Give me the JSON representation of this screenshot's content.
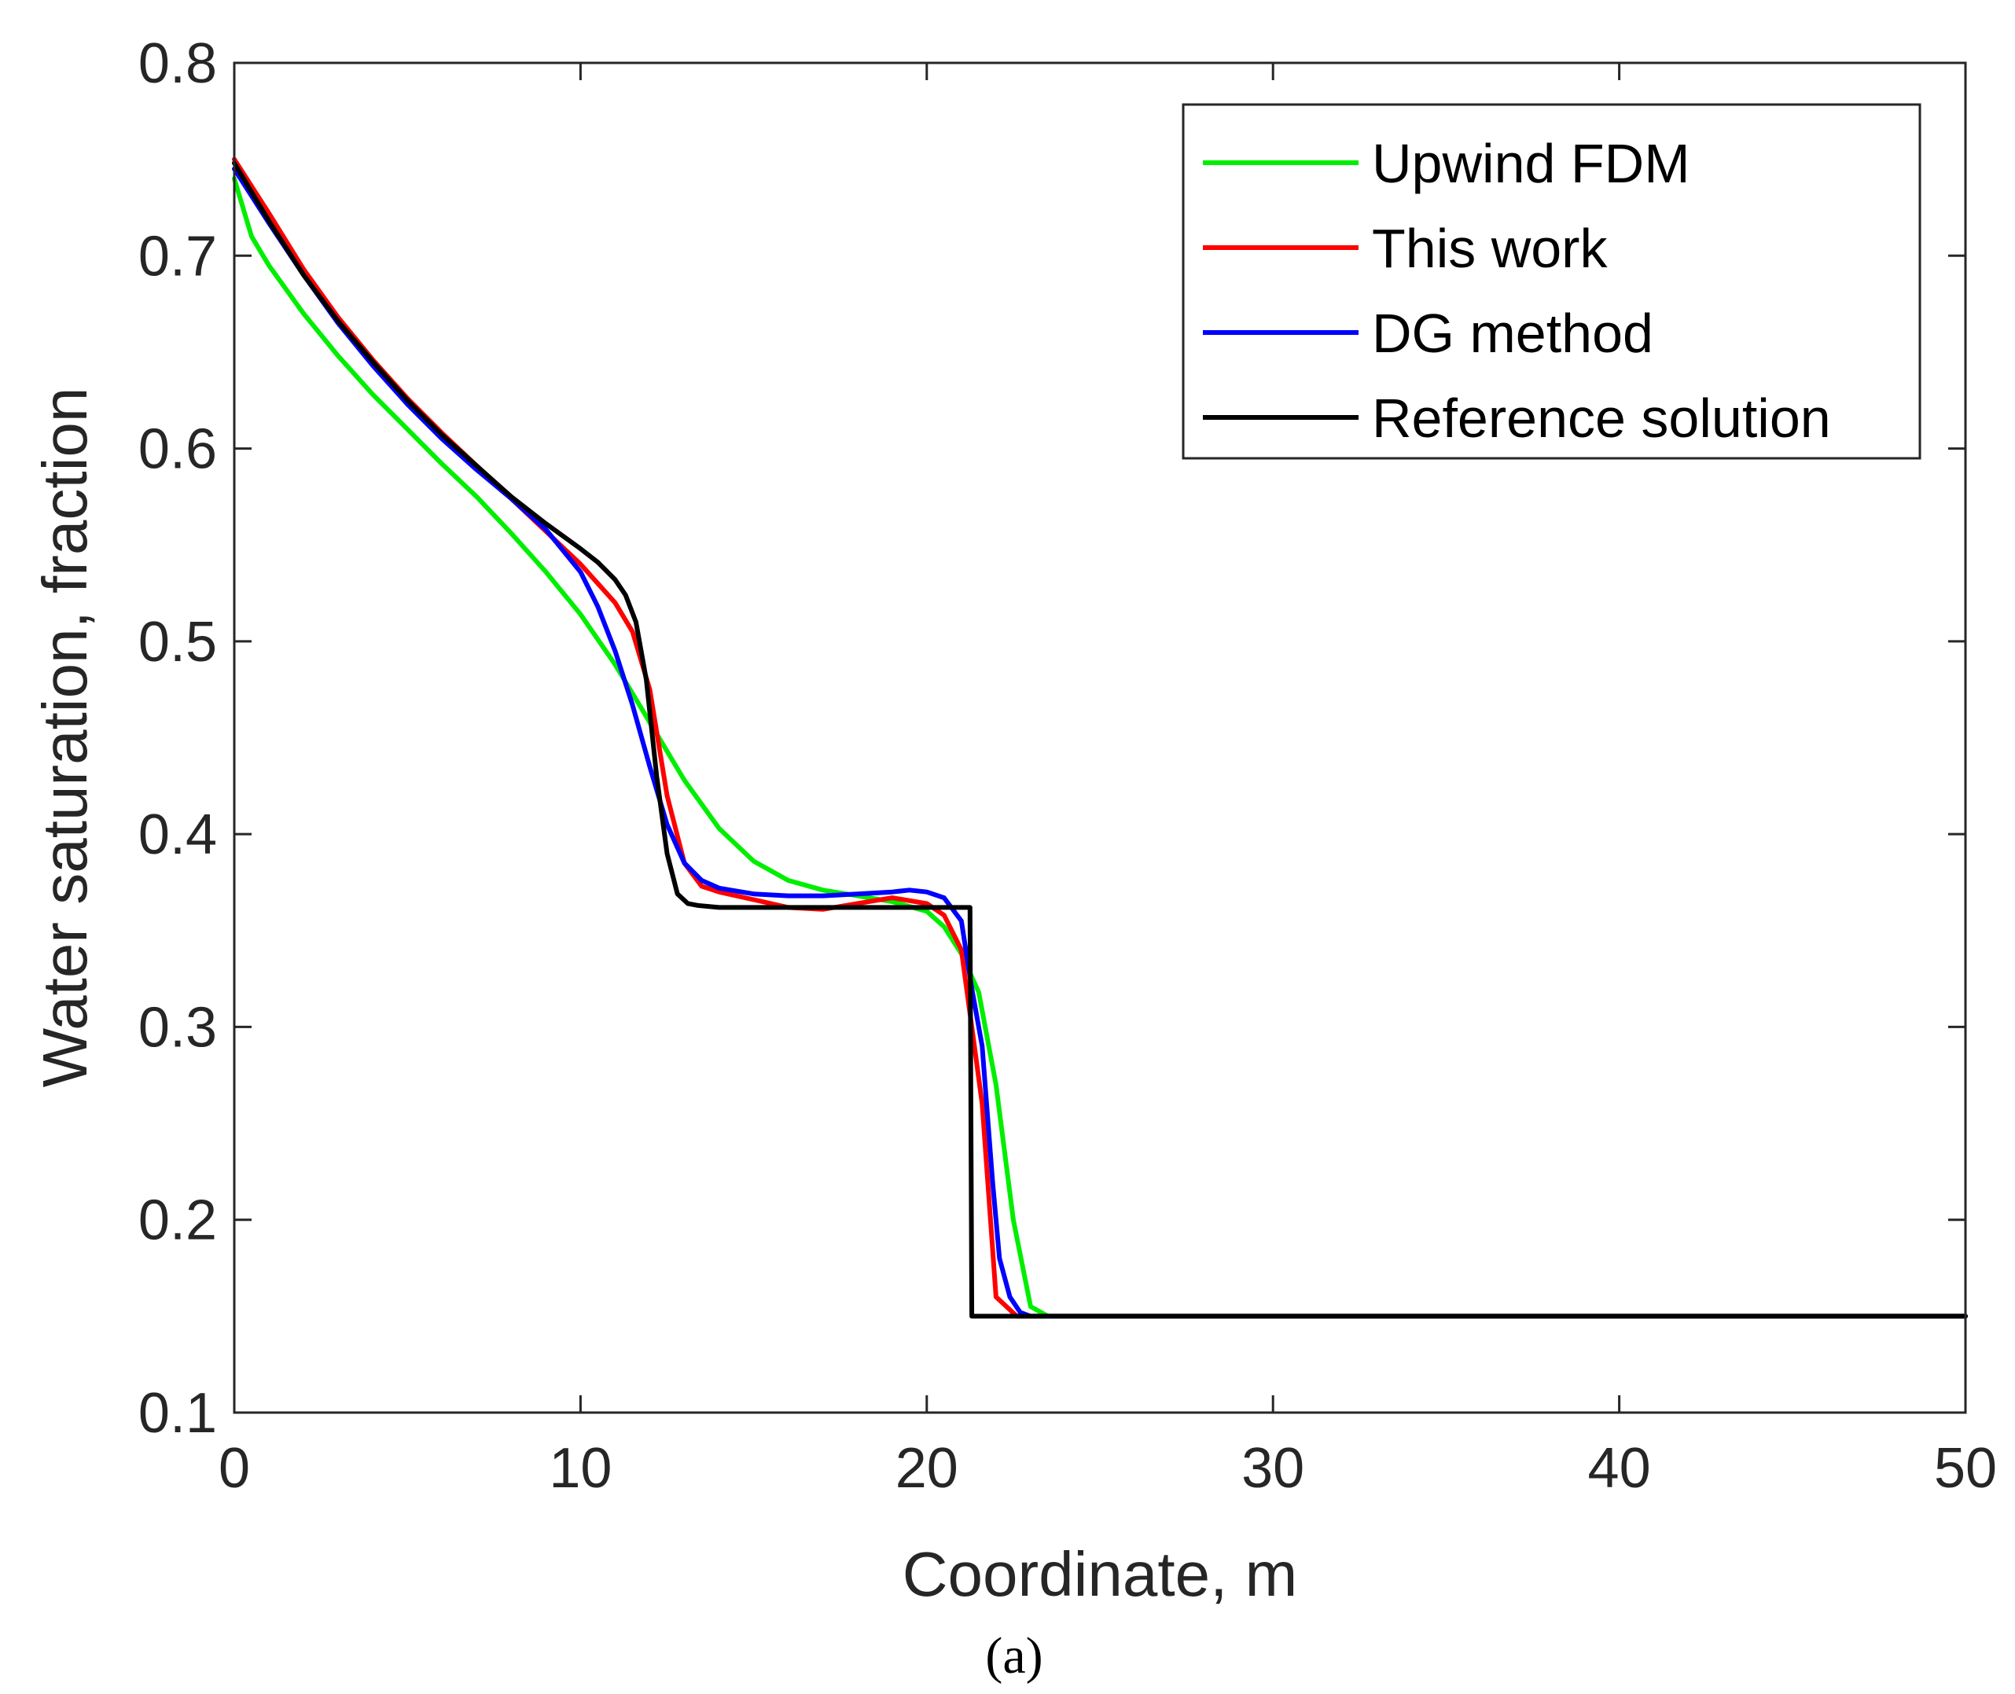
{
  "chart_data": {
    "type": "line",
    "title": "",
    "xlabel": "Coordinate, m",
    "ylabel": "Water saturation, fraction",
    "xlim": [
      0,
      50
    ],
    "ylim": [
      0.1,
      0.8
    ],
    "xticks": [
      0,
      10,
      20,
      30,
      40,
      50
    ],
    "yticks": [
      0.1,
      0.2,
      0.3,
      0.4,
      0.5,
      0.6,
      0.7,
      0.8
    ],
    "xtick_labels": [
      "0",
      "10",
      "20",
      "30",
      "40",
      "50"
    ],
    "ytick_labels": [
      "0.1",
      "0.2",
      "0.3",
      "0.4",
      "0.5",
      "0.6",
      "0.7",
      "0.8"
    ],
    "grid": false,
    "legend_position": "top-right",
    "caption": "(a)",
    "series": [
      {
        "name": "Upwind FDM",
        "color": "#00ee00",
        "x": [
          0,
          0.5,
          1,
          2,
          3,
          4,
          5,
          6,
          7,
          8,
          9,
          10,
          11,
          12,
          13,
          14,
          15,
          16,
          17,
          18,
          19,
          20,
          20.5,
          21,
          21.5,
          22,
          22.5,
          23,
          23.5,
          25,
          30,
          40,
          50
        ],
        "y": [
          0.74,
          0.71,
          0.695,
          0.67,
          0.648,
          0.628,
          0.61,
          0.592,
          0.575,
          0.556,
          0.536,
          0.514,
          0.488,
          0.458,
          0.428,
          0.403,
          0.386,
          0.376,
          0.371,
          0.368,
          0.365,
          0.36,
          0.352,
          0.338,
          0.318,
          0.27,
          0.2,
          0.155,
          0.15,
          0.15,
          0.15,
          0.15,
          0.15
        ]
      },
      {
        "name": "This work",
        "color": "#ff0000",
        "x": [
          0,
          1,
          2,
          3,
          4,
          5,
          6,
          7,
          8,
          9,
          10,
          11,
          11.5,
          12,
          12.5,
          13,
          13.5,
          14,
          15,
          16,
          17,
          18,
          19,
          20,
          20.5,
          21,
          21.3,
          21.6,
          22,
          22.3,
          22.6,
          23,
          25,
          30,
          40,
          50
        ],
        "y": [
          0.75,
          0.722,
          0.693,
          0.668,
          0.646,
          0.626,
          0.608,
          0.591,
          0.574,
          0.557,
          0.54,
          0.52,
          0.505,
          0.475,
          0.42,
          0.385,
          0.373,
          0.37,
          0.366,
          0.362,
          0.361,
          0.364,
          0.367,
          0.364,
          0.358,
          0.34,
          0.3,
          0.26,
          0.16,
          0.155,
          0.15,
          0.15,
          0.15,
          0.15,
          0.15,
          0.15
        ]
      },
      {
        "name": "DG method",
        "color": "#0000ff",
        "x": [
          0,
          1,
          2,
          3,
          4,
          5,
          6,
          7,
          8,
          9,
          10,
          10.5,
          11,
          11.5,
          12,
          12.5,
          13,
          13.5,
          14,
          15,
          16,
          17,
          18,
          19,
          19.5,
          20,
          20.5,
          21,
          21.3,
          21.6,
          21.9,
          22.1,
          22.4,
          22.7,
          23,
          25,
          30,
          40,
          50
        ],
        "y": [
          0.745,
          0.717,
          0.69,
          0.665,
          0.643,
          0.623,
          0.605,
          0.589,
          0.574,
          0.558,
          0.536,
          0.518,
          0.495,
          0.467,
          0.435,
          0.405,
          0.385,
          0.376,
          0.372,
          0.369,
          0.368,
          0.368,
          0.369,
          0.37,
          0.371,
          0.37,
          0.367,
          0.355,
          0.32,
          0.29,
          0.22,
          0.18,
          0.16,
          0.152,
          0.15,
          0.15,
          0.15,
          0.15,
          0.15
        ]
      },
      {
        "name": "Reference solution",
        "color": "#000000",
        "x": [
          0,
          1,
          2,
          3,
          4,
          5,
          6,
          7,
          8,
          9,
          10,
          10.5,
          11,
          11.3,
          11.6,
          11.9,
          12.2,
          12.5,
          12.8,
          13.1,
          13.4,
          14,
          15,
          20,
          21.1,
          21.25,
          21.3,
          25,
          30,
          40,
          50
        ],
        "y": [
          0.748,
          0.718,
          0.69,
          0.666,
          0.645,
          0.625,
          0.607,
          0.591,
          0.575,
          0.561,
          0.548,
          0.541,
          0.532,
          0.524,
          0.51,
          0.48,
          0.43,
          0.39,
          0.369,
          0.364,
          0.363,
          0.362,
          0.362,
          0.362,
          0.362,
          0.362,
          0.15,
          0.15,
          0.15,
          0.15,
          0.15
        ]
      }
    ]
  }
}
